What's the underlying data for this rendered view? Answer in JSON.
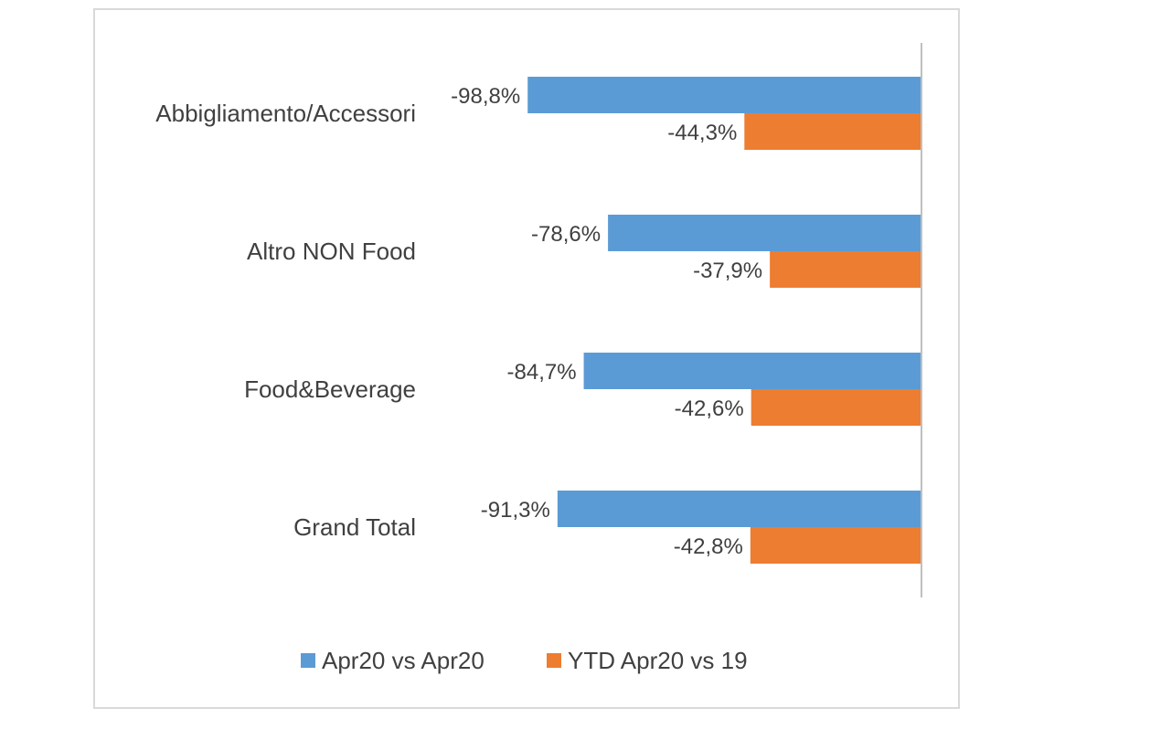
{
  "chart_data": {
    "type": "bar",
    "orientation": "horizontal",
    "title": "",
    "xlabel": "",
    "ylabel": "",
    "categories": [
      "Abbigliamento/Accessori",
      "Altro NON Food",
      "Food&Beverage",
      "Grand Total"
    ],
    "series": [
      {
        "name": "Apr20 vs Apr20",
        "color": "#5b9bd5",
        "values": [
          -98.8,
          -78.6,
          -84.7,
          -91.3
        ],
        "labels": [
          "-98,8%",
          "-78,6%",
          "-84,7%",
          "-91,3%"
        ]
      },
      {
        "name": "YTD Apr20 vs 19",
        "color": "#ed7d31",
        "values": [
          -44.3,
          -37.9,
          -42.6,
          -42.8
        ],
        "labels": [
          "-44,3%",
          "-37,9%",
          "-42,6%",
          "-42,8%"
        ]
      }
    ],
    "xlim": [
      -100,
      0
    ],
    "grid": false,
    "legend_position": "bottom",
    "axis_color": "#bfbfbf"
  }
}
